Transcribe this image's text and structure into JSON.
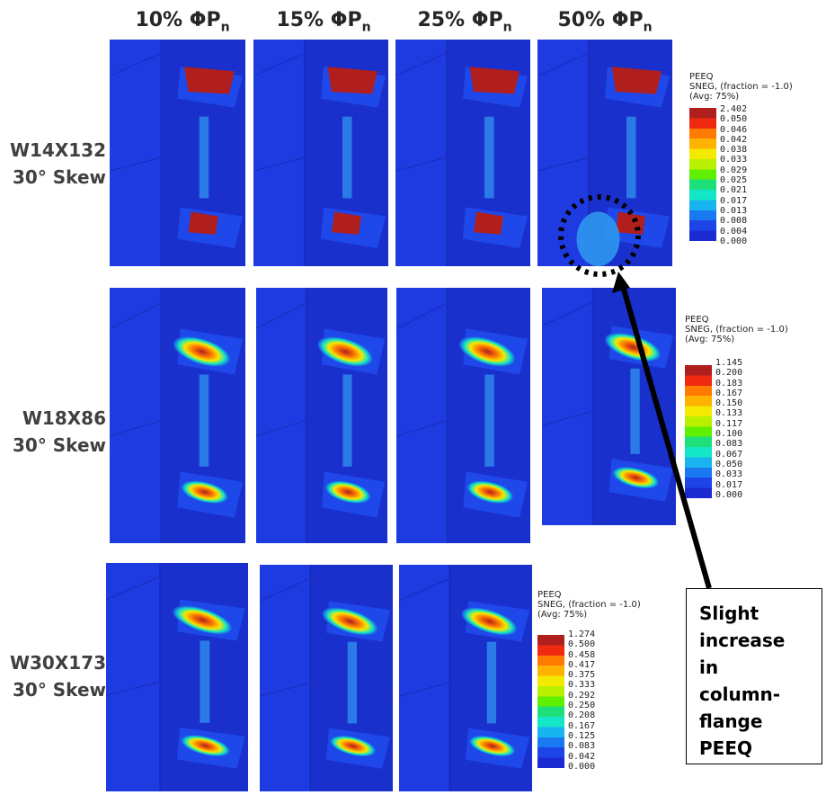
{
  "columns": [
    {
      "label": "10% ΦP",
      "sub": "n"
    },
    {
      "label": "15% ΦP",
      "sub": "n"
    },
    {
      "label": "25% ΦP",
      "sub": "n"
    },
    {
      "label": "50% ΦP",
      "sub": "n"
    }
  ],
  "rows": [
    {
      "line1": "W14X132",
      "line2": "30° Skew"
    },
    {
      "line1": "W18X86",
      "line2": "30° Skew"
    },
    {
      "line1": "W30X173",
      "line2": "30° Skew"
    }
  ],
  "legends": [
    {
      "title": "PEEQ",
      "line2": "SNEG, (fraction = -1.0)",
      "line3": "(Avg: 75%)",
      "values": [
        "2.402",
        "0.050",
        "0.046",
        "0.042",
        "0.038",
        "0.033",
        "0.029",
        "0.025",
        "0.021",
        "0.017",
        "0.013",
        "0.008",
        "0.004",
        "0.000"
      ]
    },
    {
      "title": "PEEQ",
      "line2": "SNEG, (fraction = -1.0)",
      "line3": "(Avg: 75%)",
      "values": [
        "1.145",
        "0.200",
        "0.183",
        "0.167",
        "0.150",
        "0.133",
        "0.117",
        "0.100",
        "0.083",
        "0.067",
        "0.050",
        "0.033",
        "0.017",
        "0.000"
      ]
    },
    {
      "title": "PEEQ",
      "line2": "SNEG, (fraction = -1.0)",
      "line3": "(Avg: 75%)",
      "values": [
        "1.274",
        "0.500",
        "0.458",
        "0.417",
        "0.375",
        "0.333",
        "0.292",
        "0.250",
        "0.208",
        "0.167",
        "0.125",
        "0.083",
        "0.042",
        "0.000"
      ]
    }
  ],
  "colormap": [
    "#b01e1e",
    "#f02a10",
    "#ff7a00",
    "#ffb300",
    "#f2ea00",
    "#b8f000",
    "#5ef000",
    "#1ee07a",
    "#14e6c8",
    "#18b4f0",
    "#1a78f0",
    "#1c44e6",
    "#1c2ad2"
  ],
  "callout": {
    "lines": [
      "Slight",
      "increase in",
      "column-",
      "flange",
      "PEEQ"
    ]
  }
}
